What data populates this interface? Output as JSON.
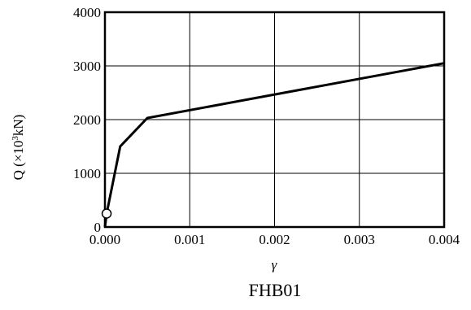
{
  "chart_data": {
    "type": "line",
    "caption": "FHB01",
    "xlabel": "γ",
    "ylabel_prefix": "Q (×10",
    "ylabel_sup": "3",
    "ylabel_suffix": "kN)",
    "xlim": [
      0,
      0.004
    ],
    "ylim": [
      0,
      4000
    ],
    "x_ticks": [
      0,
      0.001,
      0.002,
      0.003,
      0.004
    ],
    "x_tick_labels": [
      "0.000",
      "0.001",
      "0.002",
      "0.003",
      "0.004"
    ],
    "y_ticks": [
      0,
      1000,
      2000,
      3000,
      4000
    ],
    "y_tick_labels": [
      "0",
      "1000",
      "2000",
      "3000",
      "4000"
    ],
    "grid": true,
    "series": [
      {
        "x": [
          0,
          2e-05,
          0.00018,
          0.0005,
          0.004
        ],
        "y": [
          0,
          250,
          1500,
          2030,
          3050
        ]
      }
    ],
    "markers": [
      {
        "x": 2e-05,
        "y": 250,
        "shape": "open-circle"
      }
    ],
    "colors": {
      "line": "#000000",
      "grid": "#000000",
      "marker_fill": "#ffffff"
    }
  }
}
